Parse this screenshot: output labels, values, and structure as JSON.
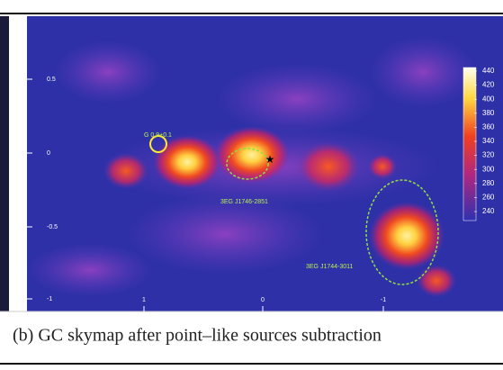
{
  "figure": {
    "yticks": [
      "0.5",
      "0",
      "-0.5",
      "-1"
    ],
    "xticks": [
      "1",
      "0",
      "-1"
    ],
    "colorbar": [
      "440",
      "420",
      "400",
      "380",
      "360",
      "340",
      "320",
      "300",
      "280",
      "260",
      "240"
    ],
    "annotations": [
      "G 0.9+0.1",
      "3EG J1746-2851",
      "3EG J1744-3011"
    ],
    "caption": "(b) GC skymap after point–like sources subtraction"
  }
}
